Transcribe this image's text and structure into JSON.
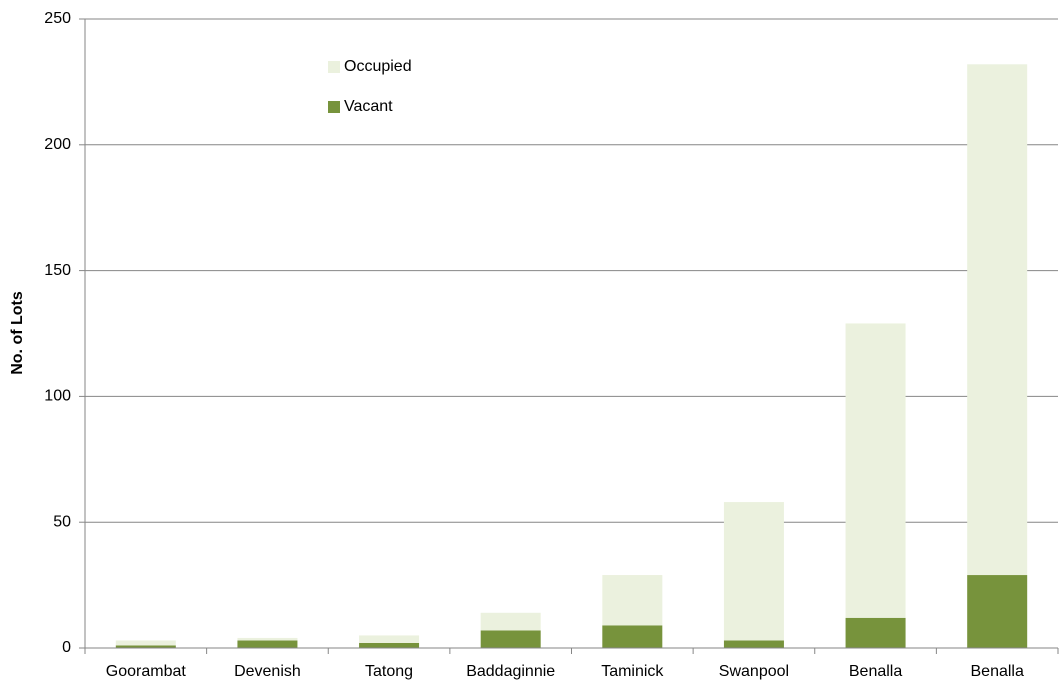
{
  "chart_data": {
    "type": "stacked_bar",
    "y_label": "No. of Lots",
    "categories": [
      "Goorambat",
      "Devenish",
      "Tatong",
      "Baddaginnie",
      "Taminick",
      "Swanpool",
      "Benalla",
      "Benalla"
    ],
    "series": [
      {
        "name": "Vacant",
        "color": "#77933c",
        "values": [
          1,
          3,
          2,
          7,
          9,
          3,
          12,
          29
        ]
      },
      {
        "name": "Occupied",
        "color": "#ebf1de",
        "values": [
          2,
          1,
          3,
          7,
          20,
          55,
          117,
          203
        ]
      }
    ],
    "ylim": [
      0,
      250
    ],
    "yticks": [
      0,
      50,
      100,
      150,
      200,
      250
    ],
    "grid": true
  }
}
